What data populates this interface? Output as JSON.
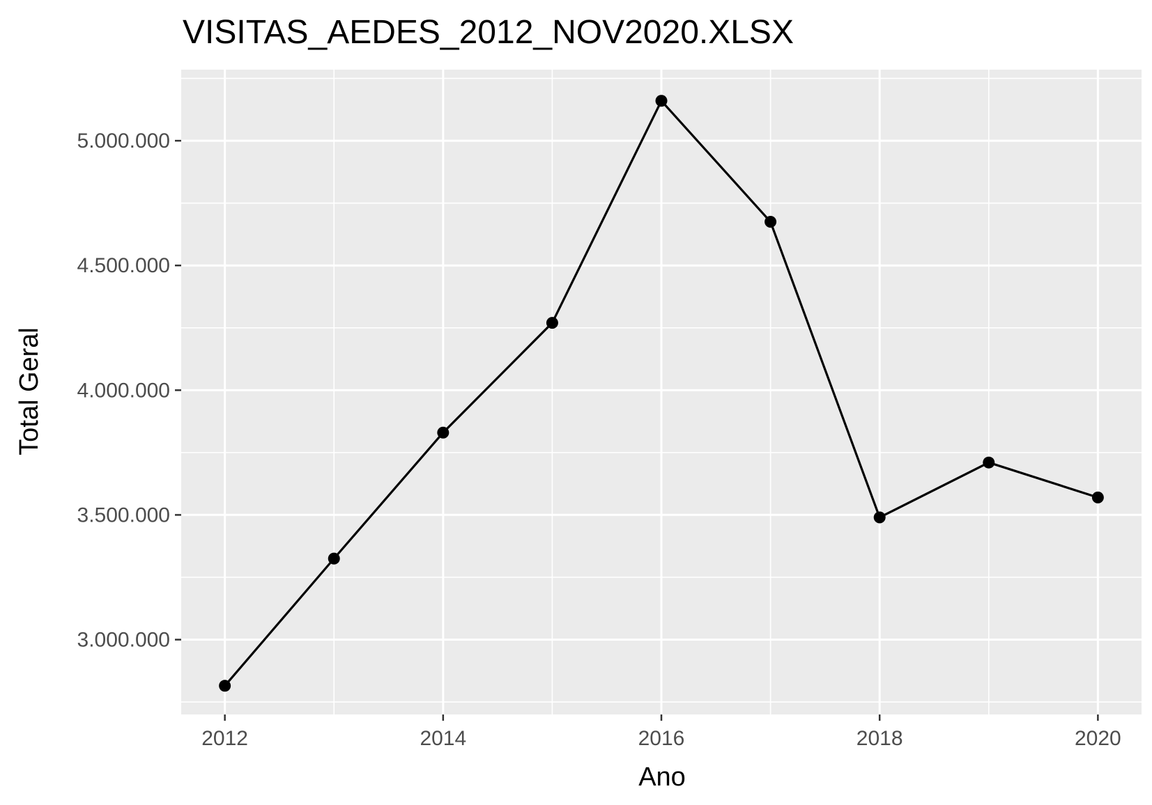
{
  "chart_data": {
    "type": "line",
    "title": "VISITAS_AEDES_2012_NOV2020.XLSX",
    "xlabel": "Ano",
    "ylabel": "Total Geral",
    "x": [
      2012,
      2013,
      2014,
      2015,
      2016,
      2017,
      2018,
      2019,
      2020
    ],
    "series": [
      {
        "values": [
          2815000,
          3325000,
          3830000,
          4270000,
          5160000,
          4675000,
          3490000,
          3710000,
          3570000
        ]
      }
    ],
    "xlim": [
      2011.6,
      2020.4
    ],
    "ylim": [
      2700000,
      5285000
    ],
    "x_ticks": [
      2012,
      2014,
      2016,
      2018,
      2020
    ],
    "x_tick_labels": [
      "2012",
      "2014",
      "2016",
      "2018",
      "2020"
    ],
    "y_ticks": [
      3000000,
      3500000,
      4000000,
      4500000,
      5000000
    ],
    "y_tick_labels": [
      "3.000.000",
      "3.500.000",
      "4.000.000",
      "4.500.000",
      "5.000.000"
    ],
    "grid": true,
    "colors": {
      "panel_background": "#ebebeb",
      "grid_major": "#ffffff",
      "line": "#000000",
      "point": "#000000",
      "tick_text": "#4d4d4d",
      "tick_mark": "#333333"
    }
  }
}
